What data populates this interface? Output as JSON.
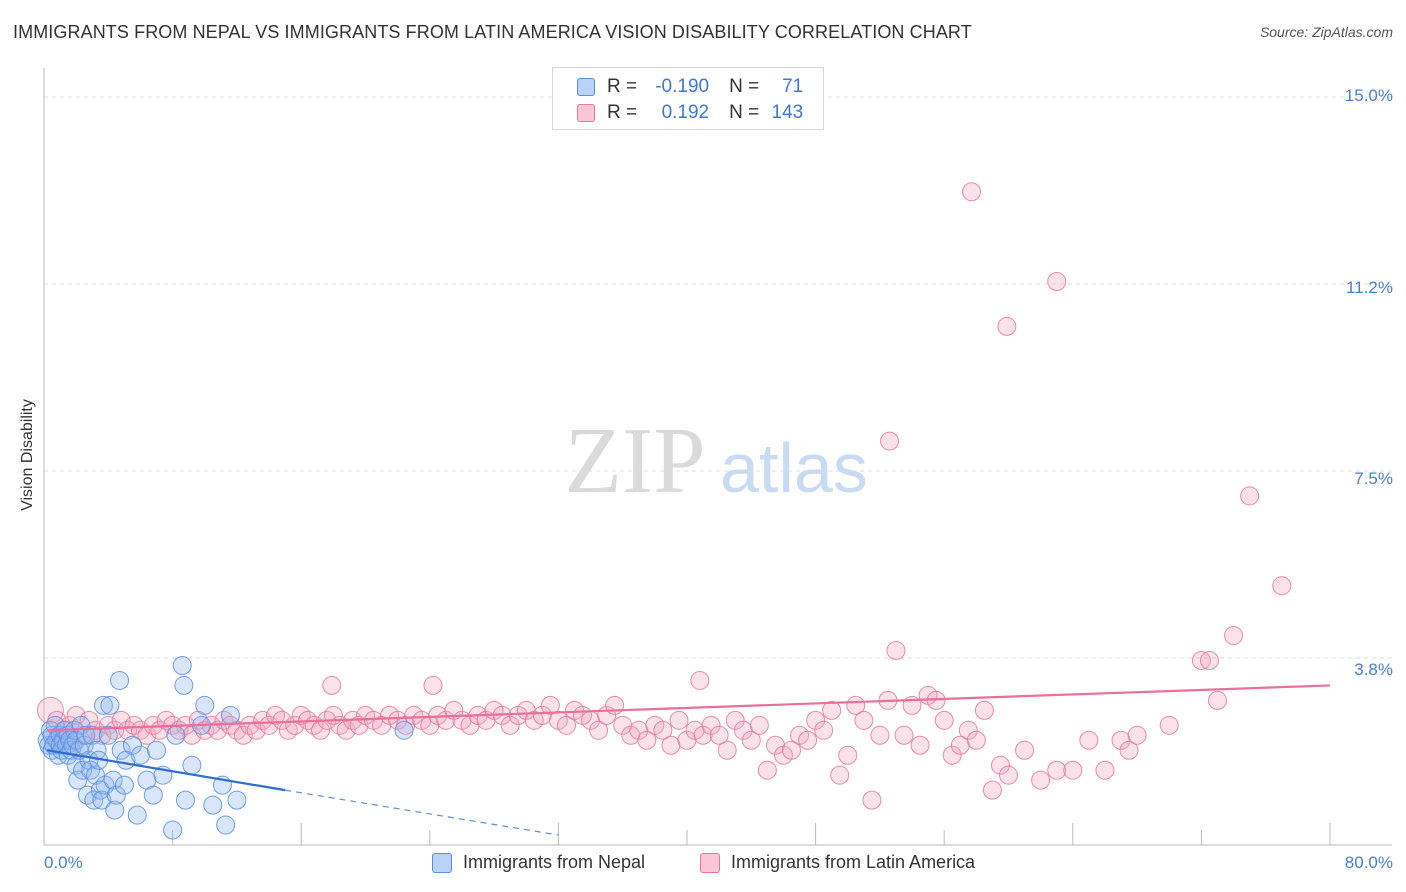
{
  "title": "IMMIGRANTS FROM NEPAL VS IMMIGRANTS FROM LATIN AMERICA VISION DISABILITY CORRELATION CHART",
  "source": "Source: ZipAtlas.com",
  "watermark": {
    "zip": "ZIP",
    "atlas": "atlas"
  },
  "legend": {
    "nepal": {
      "r_label": "R =",
      "r_value": "-0.190",
      "n_label": "N =",
      "n_value": "71"
    },
    "latin": {
      "r_label": "R =",
      "r_value": "0.192",
      "n_label": "N =",
      "n_value": "143"
    }
  },
  "bottom_legend": {
    "nepal": "Immigrants from Nepal",
    "latin": "Immigrants from Latin America"
  },
  "x_ticks": {
    "min": "0.0%",
    "max": "80.0%"
  },
  "y_ticks": [
    "15.0%",
    "11.2%",
    "7.5%",
    "3.8%"
  ],
  "chart_data": {
    "type": "scatter",
    "title": "IMMIGRANTS FROM NEPAL VS IMMIGRANTS FROM LATIN AMERICA VISION DISABILITY CORRELATION CHART",
    "xlabel": "",
    "ylabel": "Vision Disability",
    "xlim": [
      0,
      80
    ],
    "ylim": [
      0,
      15.5
    ],
    "grid": true,
    "colors": {
      "nepal": "#5b8fe0",
      "latin": "#e6789c"
    },
    "series": [
      {
        "name": "Immigrants from Nepal",
        "r": -0.19,
        "n": 71,
        "trend_solid": [
          [
            0.2,
            1.9
          ],
          [
            15,
            1.1
          ]
        ],
        "trend_dashed": [
          [
            15,
            1.1
          ],
          [
            32,
            0.2
          ]
        ],
        "points": [
          [
            0.2,
            2.1
          ],
          [
            0.3,
            2.0
          ],
          [
            0.4,
            2.3
          ],
          [
            0.5,
            1.9
          ],
          [
            0.5,
            2.2
          ],
          [
            0.6,
            2.0
          ],
          [
            0.7,
            2.4
          ],
          [
            0.8,
            2.1
          ],
          [
            0.9,
            1.8
          ],
          [
            1.0,
            2.2
          ],
          [
            1.0,
            2.0
          ],
          [
            1.1,
            1.9
          ],
          [
            1.2,
            2.1
          ],
          [
            1.3,
            2.3
          ],
          [
            1.4,
            2.0
          ],
          [
            1.5,
            1.8
          ],
          [
            1.5,
            2.2
          ],
          [
            1.6,
            2.1
          ],
          [
            1.7,
            1.9
          ],
          [
            1.8,
            2.0
          ],
          [
            1.9,
            2.3
          ],
          [
            2.0,
            1.6
          ],
          [
            2.0,
            2.1
          ],
          [
            2.1,
            1.3
          ],
          [
            2.2,
            1.9
          ],
          [
            2.3,
            2.4
          ],
          [
            2.4,
            1.5
          ],
          [
            2.5,
            2.0
          ],
          [
            2.6,
            2.2
          ],
          [
            2.7,
            1.0
          ],
          [
            2.8,
            1.7
          ],
          [
            2.9,
            1.5
          ],
          [
            3.0,
            2.2
          ],
          [
            3.1,
            0.9
          ],
          [
            3.2,
            1.4
          ],
          [
            3.3,
            1.9
          ],
          [
            3.4,
            1.7
          ],
          [
            3.5,
            1.1
          ],
          [
            3.6,
            0.9
          ],
          [
            3.7,
            2.8
          ],
          [
            3.8,
            1.2
          ],
          [
            4.0,
            2.2
          ],
          [
            4.1,
            2.8
          ],
          [
            4.3,
            1.3
          ],
          [
            4.4,
            0.7
          ],
          [
            4.5,
            1.0
          ],
          [
            4.7,
            3.3
          ],
          [
            4.8,
            1.9
          ],
          [
            5.0,
            1.2
          ],
          [
            5.1,
            1.7
          ],
          [
            5.5,
            2.0
          ],
          [
            5.8,
            0.6
          ],
          [
            6.0,
            1.8
          ],
          [
            6.4,
            1.3
          ],
          [
            6.8,
            1.0
          ],
          [
            7.0,
            1.9
          ],
          [
            7.4,
            1.4
          ],
          [
            8.0,
            0.3
          ],
          [
            8.2,
            2.2
          ],
          [
            8.6,
            3.6
          ],
          [
            8.7,
            3.2
          ],
          [
            8.8,
            0.9
          ],
          [
            9.2,
            1.6
          ],
          [
            9.8,
            2.4
          ],
          [
            10.0,
            2.8
          ],
          [
            10.5,
            0.8
          ],
          [
            11.1,
            1.2
          ],
          [
            11.3,
            0.4
          ],
          [
            11.6,
            2.6
          ],
          [
            12.0,
            0.9
          ],
          [
            22.4,
            2.3
          ]
        ]
      },
      {
        "name": "Immigrants from Latin America",
        "r": 0.192,
        "n": 143,
        "trend_solid": [
          [
            0.2,
            2.3
          ],
          [
            80,
            3.2
          ]
        ],
        "points": [
          [
            0.4,
            2.7
          ],
          [
            0.8,
            2.5
          ],
          [
            1.2,
            2.3
          ],
          [
            1.6,
            2.4
          ],
          [
            2.0,
            2.6
          ],
          [
            2.4,
            2.2
          ],
          [
            2.8,
            2.5
          ],
          [
            3.2,
            2.3
          ],
          [
            3.6,
            2.2
          ],
          [
            4.0,
            2.4
          ],
          [
            4.4,
            2.3
          ],
          [
            4.8,
            2.5
          ],
          [
            5.2,
            2.3
          ],
          [
            5.6,
            2.4
          ],
          [
            6.0,
            2.3
          ],
          [
            6.4,
            2.2
          ],
          [
            6.8,
            2.4
          ],
          [
            7.2,
            2.3
          ],
          [
            7.6,
            2.5
          ],
          [
            8.0,
            2.4
          ],
          [
            8.4,
            2.3
          ],
          [
            8.8,
            2.4
          ],
          [
            9.2,
            2.2
          ],
          [
            9.6,
            2.5
          ],
          [
            10.0,
            2.3
          ],
          [
            10.4,
            2.4
          ],
          [
            10.8,
            2.3
          ],
          [
            11.2,
            2.5
          ],
          [
            11.6,
            2.4
          ],
          [
            12.0,
            2.3
          ],
          [
            12.4,
            2.2
          ],
          [
            12.8,
            2.4
          ],
          [
            13.2,
            2.3
          ],
          [
            13.6,
            2.5
          ],
          [
            14.0,
            2.4
          ],
          [
            14.4,
            2.6
          ],
          [
            14.8,
            2.5
          ],
          [
            15.2,
            2.3
          ],
          [
            15.6,
            2.4
          ],
          [
            16.0,
            2.6
          ],
          [
            16.4,
            2.5
          ],
          [
            16.8,
            2.4
          ],
          [
            17.2,
            2.3
          ],
          [
            17.6,
            2.5
          ],
          [
            18.0,
            2.6
          ],
          [
            18.4,
            2.4
          ],
          [
            18.8,
            2.3
          ],
          [
            19.2,
            2.5
          ],
          [
            19.6,
            2.4
          ],
          [
            20.0,
            2.6
          ],
          [
            20.5,
            2.5
          ],
          [
            21.0,
            2.4
          ],
          [
            21.5,
            2.6
          ],
          [
            22.0,
            2.5
          ],
          [
            22.5,
            2.4
          ],
          [
            23.0,
            2.6
          ],
          [
            23.5,
            2.5
          ],
          [
            24.0,
            2.4
          ],
          [
            24.5,
            2.6
          ],
          [
            25.0,
            2.5
          ],
          [
            25.5,
            2.7
          ],
          [
            26.0,
            2.5
          ],
          [
            26.5,
            2.4
          ],
          [
            27.0,
            2.6
          ],
          [
            27.5,
            2.5
          ],
          [
            28.0,
            2.7
          ],
          [
            28.5,
            2.6
          ],
          [
            29.0,
            2.4
          ],
          [
            29.5,
            2.6
          ],
          [
            30.0,
            2.7
          ],
          [
            30.5,
            2.5
          ],
          [
            31.0,
            2.6
          ],
          [
            31.5,
            2.8
          ],
          [
            32.0,
            2.5
          ],
          [
            32.5,
            2.4
          ],
          [
            33.0,
            2.7
          ],
          [
            33.5,
            2.6
          ],
          [
            34.0,
            2.5
          ],
          [
            34.5,
            2.3
          ],
          [
            35.0,
            2.6
          ],
          [
            17.9,
            3.2
          ],
          [
            24.2,
            3.2
          ],
          [
            40.8,
            3.3
          ],
          [
            35.5,
            2.8
          ],
          [
            36.0,
            2.4
          ],
          [
            36.5,
            2.2
          ],
          [
            37.0,
            2.3
          ],
          [
            37.5,
            2.1
          ],
          [
            38.0,
            2.4
          ],
          [
            38.5,
            2.3
          ],
          [
            39.0,
            2.0
          ],
          [
            39.5,
            2.5
          ],
          [
            40.0,
            2.1
          ],
          [
            40.5,
            2.3
          ],
          [
            41.0,
            2.2
          ],
          [
            41.5,
            2.4
          ],
          [
            42.0,
            2.2
          ],
          [
            42.5,
            1.9
          ],
          [
            43.0,
            2.5
          ],
          [
            43.5,
            2.3
          ],
          [
            44.0,
            2.1
          ],
          [
            44.5,
            2.4
          ],
          [
            45.0,
            1.5
          ],
          [
            45.5,
            2.0
          ],
          [
            46.0,
            1.8
          ],
          [
            46.5,
            1.9
          ],
          [
            47.0,
            2.2
          ],
          [
            47.5,
            2.1
          ],
          [
            48.0,
            2.5
          ],
          [
            48.5,
            2.3
          ],
          [
            49.0,
            2.7
          ],
          [
            49.5,
            1.4
          ],
          [
            50.0,
            1.8
          ],
          [
            50.5,
            2.8
          ],
          [
            51.0,
            2.5
          ],
          [
            51.5,
            0.9
          ],
          [
            52.0,
            2.2
          ],
          [
            52.5,
            2.9
          ],
          [
            53.0,
            3.9
          ],
          [
            53.5,
            2.2
          ],
          [
            54.0,
            2.8
          ],
          [
            54.5,
            2.0
          ],
          [
            55.0,
            3.0
          ],
          [
            55.5,
            2.9
          ],
          [
            56.0,
            2.5
          ],
          [
            56.5,
            1.8
          ],
          [
            57.0,
            2.0
          ],
          [
            57.5,
            2.3
          ],
          [
            58.0,
            2.1
          ],
          [
            58.5,
            2.7
          ],
          [
            59.0,
            1.1
          ],
          [
            59.5,
            1.6
          ],
          [
            60.0,
            1.4
          ],
          [
            61.0,
            1.9
          ],
          [
            62.0,
            1.3
          ],
          [
            63.0,
            1.5
          ],
          [
            64.0,
            1.5
          ],
          [
            65.0,
            2.1
          ],
          [
            66.0,
            1.5
          ],
          [
            67.0,
            2.1
          ],
          [
            67.5,
            1.9
          ],
          [
            68.0,
            2.2
          ],
          [
            70.0,
            2.4
          ],
          [
            72.0,
            3.7
          ],
          [
            72.5,
            3.7
          ],
          [
            73.0,
            2.9
          ],
          [
            74.0,
            4.2
          ],
          [
            75.0,
            7.0
          ],
          [
            77.0,
            5.2
          ],
          [
            52.6,
            8.1
          ],
          [
            59.9,
            10.4
          ],
          [
            57.7,
            13.1
          ],
          [
            63.0,
            11.3
          ]
        ]
      }
    ]
  }
}
